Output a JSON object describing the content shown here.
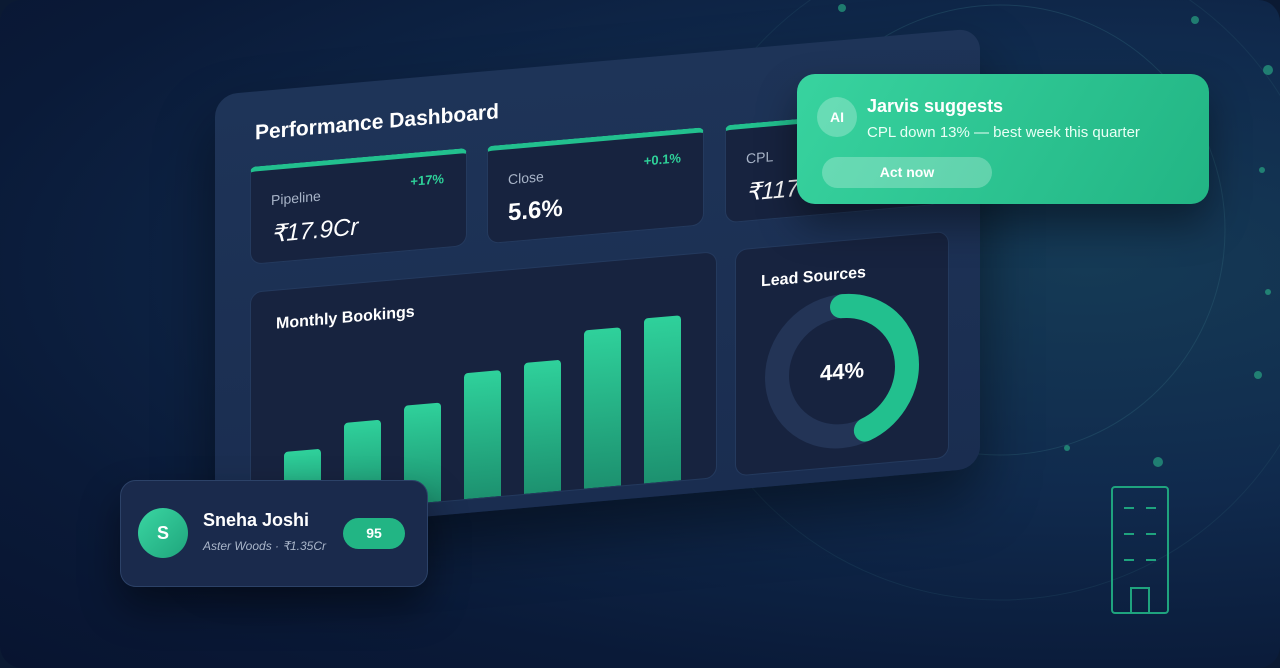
{
  "dashboard": {
    "title": "Performance Dashboard",
    "kpis": [
      {
        "label": "Pipeline",
        "value": "₹17.9Cr",
        "change": "+17%"
      },
      {
        "label": "Close",
        "value": "5.6%",
        "change": "+0.1%"
      },
      {
        "label": "CPL",
        "value": "₹117"
      }
    ],
    "bookings": {
      "type": "bar",
      "title": "Monthly Bookings",
      "values": [
        40,
        54,
        61,
        77,
        80,
        96,
        100
      ],
      "ylim": [
        0,
        100
      ],
      "color": "#22b58a"
    },
    "lead_sources": {
      "type": "pie",
      "title": "Lead Sources",
      "value": 44,
      "label": "44%",
      "color": "#22c08e"
    }
  },
  "suggestion": {
    "icon": "AI",
    "title": "Jarvis suggests",
    "message": "CPL down 13% — best week this quarter",
    "action": "Act now"
  },
  "lead": {
    "initial": "S",
    "name": "Sneha Joshi",
    "detail": "Aster Woods · ₹1.35Cr",
    "score": "95"
  }
}
